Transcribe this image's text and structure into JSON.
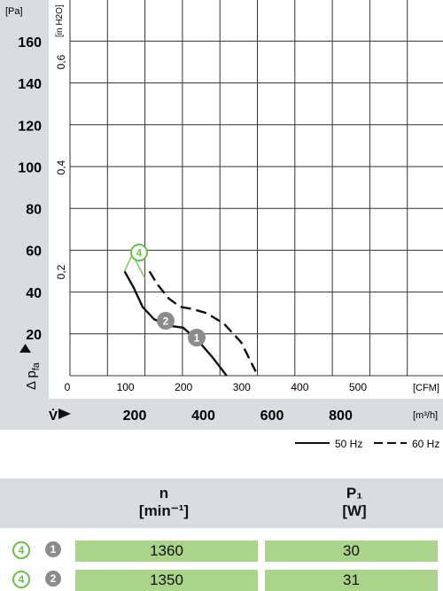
{
  "chart_data": {
    "type": "line",
    "y_left": {
      "unit": "[Pa]",
      "ticks": [
        "20",
        "40",
        "60",
        "80",
        "100",
        "120",
        "140",
        "160"
      ],
      "label_main": "Δ p",
      "label_sub": "fa"
    },
    "y_inner": {
      "unit": "[in H2O]",
      "ticks": [
        "0,2",
        "0,4",
        "0,6"
      ]
    },
    "x_cfm": {
      "unit": "[CFM]",
      "ticks": [
        "0",
        "100",
        "200",
        "300",
        "400",
        "500"
      ]
    },
    "x_m3h": {
      "unit": "[m³/h]",
      "ticks": [
        "200",
        "400",
        "600",
        "800"
      ],
      "label": "V̇"
    },
    "series": [
      {
        "name": "50 Hz",
        "style": "solid",
        "x": [
          94,
          110,
          125,
          145,
          170,
          195,
          220,
          245,
          270
        ],
        "y": [
          50,
          42,
          33,
          27,
          24,
          23,
          17,
          9,
          0
        ]
      },
      {
        "name": "60 Hz",
        "style": "dashed",
        "x": [
          137,
          150,
          170,
          190,
          210,
          235,
          265,
          295,
          320
        ],
        "y": [
          50,
          44,
          37,
          33,
          32,
          30,
          25,
          16,
          2
        ]
      }
    ],
    "markers": [
      {
        "label": "4",
        "style": "green",
        "x": 137,
        "y": 50
      },
      {
        "label": "2",
        "style": "grey",
        "x": 170,
        "y": 24
      },
      {
        "label": "1",
        "style": "grey",
        "x": 225,
        "y": 16
      }
    ],
    "legend": [
      {
        "label": "50 Hz",
        "style": "solid"
      },
      {
        "label": "60 Hz",
        "style": "dashed"
      }
    ],
    "grid": true
  },
  "table": {
    "col_n": {
      "name": "n",
      "unit": "[min⁻¹]"
    },
    "col_p": {
      "name": "P₁",
      "unit": "[W]"
    },
    "rows": [
      {
        "badge_a": "4",
        "badge_b": "1",
        "n": "1360",
        "p": "30"
      },
      {
        "badge_a": "4",
        "badge_b": "2",
        "n": "1350",
        "p": "31"
      }
    ]
  }
}
